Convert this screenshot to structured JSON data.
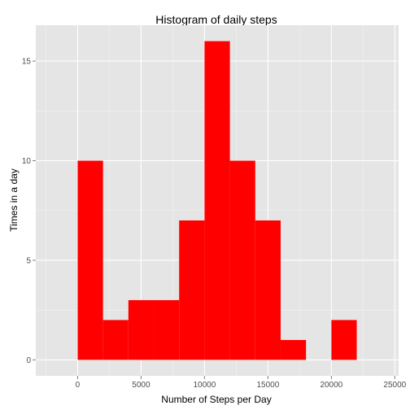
{
  "chart_data": {
    "type": "bar",
    "title": "Histogram of daily steps",
    "xlabel": "Number of Steps per Day",
    "ylabel": "Times in a day",
    "bin_width": 2000,
    "bins": [
      {
        "start": 0,
        "end": 2000,
        "count": 10
      },
      {
        "start": 2000,
        "end": 4000,
        "count": 2
      },
      {
        "start": 4000,
        "end": 6000,
        "count": 3
      },
      {
        "start": 6000,
        "end": 8000,
        "count": 3
      },
      {
        "start": 8000,
        "end": 10000,
        "count": 7
      },
      {
        "start": 10000,
        "end": 12000,
        "count": 16
      },
      {
        "start": 12000,
        "end": 14000,
        "count": 10
      },
      {
        "start": 14000,
        "end": 16000,
        "count": 7
      },
      {
        "start": 16000,
        "end": 18000,
        "count": 1
      },
      {
        "start": 18000,
        "end": 20000,
        "count": 0
      },
      {
        "start": 20000,
        "end": 22000,
        "count": 2
      }
    ],
    "xlim": [
      -3300,
      25300
    ],
    "ylim": [
      -0.8,
      16.8
    ],
    "x_ticks": [
      {
        "value": 0,
        "label": "0"
      },
      {
        "value": 5000,
        "label": "5000"
      },
      {
        "value": 10000,
        "label": "10000"
      },
      {
        "value": 15000,
        "label": "15000"
      },
      {
        "value": 20000,
        "label": "20000"
      },
      {
        "value": 25000,
        "label": "25000"
      }
    ],
    "y_ticks": [
      {
        "value": 0,
        "label": "0"
      },
      {
        "value": 5,
        "label": "5"
      },
      {
        "value": 10,
        "label": "10"
      },
      {
        "value": 15,
        "label": "15"
      }
    ],
    "grid": true,
    "colors": {
      "bar_fill": "#ff0000",
      "panel_background": "#e5e5e5",
      "grid_major": "#ffffff",
      "grid_minor": "#f2f2f2",
      "tick_text": "#4d4d4d",
      "tick_mark": "#7f7f7f"
    }
  }
}
